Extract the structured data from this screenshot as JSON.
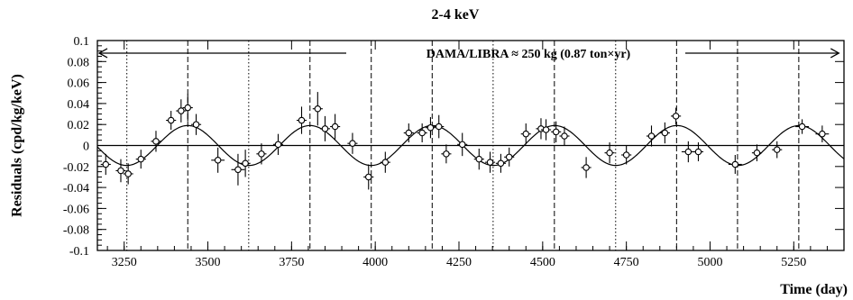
{
  "chart_data": {
    "type": "scatter",
    "title": "2-4 keV",
    "xlabel": "Time (day)",
    "ylabel": "Residuals (cpd/kg/keV)",
    "xlim": [
      3170,
      5400
    ],
    "ylim": [
      -0.1,
      0.1
    ],
    "x_ticks": [
      3250,
      3500,
      3750,
      4000,
      4250,
      4500,
      4750,
      5000,
      5250
    ],
    "y_ticks": [
      -0.1,
      -0.08,
      -0.06,
      -0.04,
      -0.02,
      0,
      0.02,
      0.04,
      0.06,
      0.08,
      0.1
    ],
    "annotation": "DAMA/LIBRA ≈ 250 kg   (0.87 ton×yr)",
    "annotation_arrow_range": [
      3170,
      5390
    ],
    "grid": false,
    "fit_curve": {
      "amplitude": 0.019,
      "period_days": 365.25,
      "phase_day": 3440
    },
    "dashed_lines": [
      3440,
      3805,
      3988,
      4170,
      4535,
      4900,
      5082,
      5265
    ],
    "dotted_lines": [
      3258,
      3622,
      4352,
      4718
    ],
    "points": [
      {
        "x": 3195,
        "y": -0.018,
        "xerr": 15,
        "yerr": 0.01
      },
      {
        "x": 3240,
        "y": -0.024,
        "xerr": 15,
        "yerr": 0.011
      },
      {
        "x": 3262,
        "y": -0.027,
        "xerr": 15,
        "yerr": 0.01
      },
      {
        "x": 3300,
        "y": -0.013,
        "xerr": 15,
        "yerr": 0.009
      },
      {
        "x": 3345,
        "y": 0.004,
        "xerr": 15,
        "yerr": 0.01
      },
      {
        "x": 3390,
        "y": 0.024,
        "xerr": 15,
        "yerr": 0.009
      },
      {
        "x": 3420,
        "y": 0.033,
        "xerr": 15,
        "yerr": 0.011
      },
      {
        "x": 3440,
        "y": 0.036,
        "xerr": 15,
        "yerr": 0.013
      },
      {
        "x": 3465,
        "y": 0.02,
        "xerr": 15,
        "yerr": 0.01
      },
      {
        "x": 3530,
        "y": -0.014,
        "xerr": 20,
        "yerr": 0.012
      },
      {
        "x": 3590,
        "y": -0.023,
        "xerr": 20,
        "yerr": 0.015
      },
      {
        "x": 3612,
        "y": -0.017,
        "xerr": 15,
        "yerr": 0.013
      },
      {
        "x": 3660,
        "y": -0.008,
        "xerr": 15,
        "yerr": 0.01
      },
      {
        "x": 3710,
        "y": 0.001,
        "xerr": 15,
        "yerr": 0.01
      },
      {
        "x": 3780,
        "y": 0.024,
        "xerr": 15,
        "yerr": 0.013
      },
      {
        "x": 3828,
        "y": 0.035,
        "xerr": 15,
        "yerr": 0.016
      },
      {
        "x": 3850,
        "y": 0.016,
        "xerr": 15,
        "yerr": 0.012
      },
      {
        "x": 3880,
        "y": 0.018,
        "xerr": 15,
        "yerr": 0.012
      },
      {
        "x": 3932,
        "y": 0.002,
        "xerr": 15,
        "yerr": 0.01
      },
      {
        "x": 3980,
        "y": -0.03,
        "xerr": 15,
        "yerr": 0.012
      },
      {
        "x": 4030,
        "y": -0.016,
        "xerr": 15,
        "yerr": 0.01
      },
      {
        "x": 4100,
        "y": 0.012,
        "xerr": 15,
        "yerr": 0.009
      },
      {
        "x": 4140,
        "y": 0.012,
        "xerr": 15,
        "yerr": 0.009
      },
      {
        "x": 4165,
        "y": 0.017,
        "xerr": 15,
        "yerr": 0.01
      },
      {
        "x": 4190,
        "y": 0.018,
        "xerr": 15,
        "yerr": 0.011
      },
      {
        "x": 4212,
        "y": -0.008,
        "xerr": 15,
        "yerr": 0.009
      },
      {
        "x": 4260,
        "y": 0.001,
        "xerr": 15,
        "yerr": 0.011
      },
      {
        "x": 4310,
        "y": -0.013,
        "xerr": 15,
        "yerr": 0.01
      },
      {
        "x": 4343,
        "y": -0.016,
        "xerr": 15,
        "yerr": 0.01
      },
      {
        "x": 4375,
        "y": -0.017,
        "xerr": 15,
        "yerr": 0.009
      },
      {
        "x": 4400,
        "y": -0.011,
        "xerr": 15,
        "yerr": 0.009
      },
      {
        "x": 4450,
        "y": 0.011,
        "xerr": 15,
        "yerr": 0.01
      },
      {
        "x": 4495,
        "y": 0.016,
        "xerr": 15,
        "yerr": 0.01
      },
      {
        "x": 4510,
        "y": 0.015,
        "xerr": 15,
        "yerr": 0.01
      },
      {
        "x": 4540,
        "y": 0.013,
        "xerr": 15,
        "yerr": 0.01
      },
      {
        "x": 4565,
        "y": 0.009,
        "xerr": 15,
        "yerr": 0.009
      },
      {
        "x": 4630,
        "y": -0.021,
        "xerr": 15,
        "yerr": 0.01
      },
      {
        "x": 4700,
        "y": -0.007,
        "xerr": 15,
        "yerr": 0.01
      },
      {
        "x": 4750,
        "y": -0.009,
        "xerr": 15,
        "yerr": 0.009
      },
      {
        "x": 4825,
        "y": 0.009,
        "xerr": 15,
        "yerr": 0.01
      },
      {
        "x": 4865,
        "y": 0.012,
        "xerr": 15,
        "yerr": 0.01
      },
      {
        "x": 4898,
        "y": 0.028,
        "xerr": 15,
        "yerr": 0.008
      },
      {
        "x": 4935,
        "y": -0.006,
        "xerr": 20,
        "yerr": 0.01
      },
      {
        "x": 4965,
        "y": -0.006,
        "xerr": 15,
        "yerr": 0.009
      },
      {
        "x": 5075,
        "y": -0.018,
        "xerr": 20,
        "yerr": 0.009
      },
      {
        "x": 5140,
        "y": -0.007,
        "xerr": 15,
        "yerr": 0.008
      },
      {
        "x": 5200,
        "y": -0.004,
        "xerr": 15,
        "yerr": 0.008
      },
      {
        "x": 5275,
        "y": 0.018,
        "xerr": 20,
        "yerr": 0.007
      },
      {
        "x": 5335,
        "y": 0.011,
        "xerr": 20,
        "yerr": 0.008
      }
    ]
  }
}
